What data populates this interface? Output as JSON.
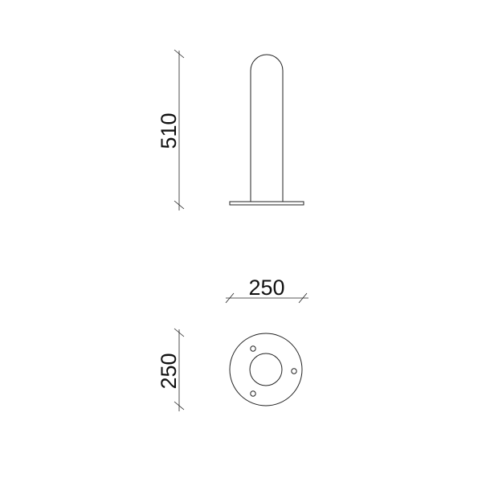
{
  "drawing": {
    "views": [
      {
        "name": "side-elevation",
        "dimensions": [
          {
            "name": "height",
            "label": "510"
          }
        ]
      },
      {
        "name": "top-plan",
        "dimensions": [
          {
            "name": "width",
            "label": "250"
          },
          {
            "name": "depth",
            "label": "250"
          }
        ]
      }
    ],
    "line_color": "#222222",
    "background": "#ffffff"
  }
}
